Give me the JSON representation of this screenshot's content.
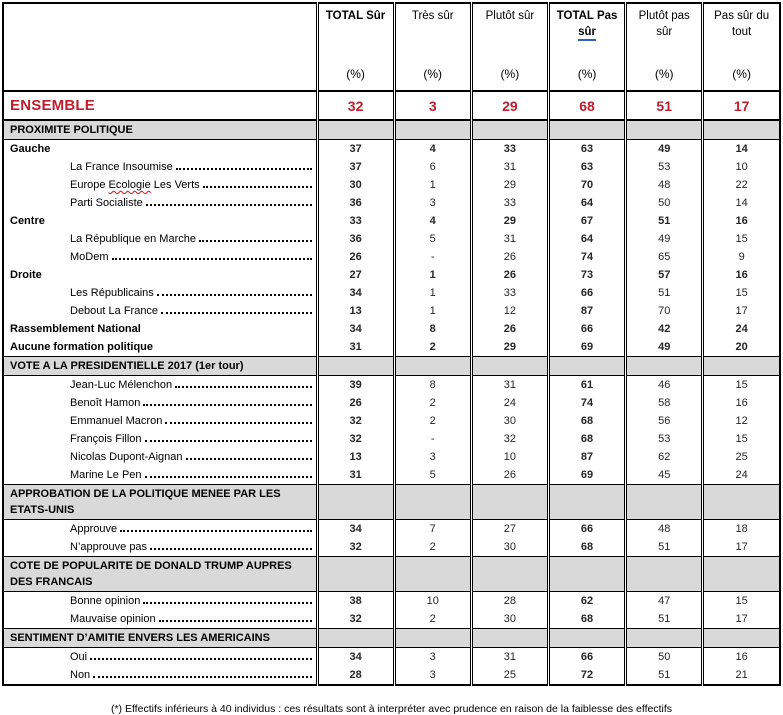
{
  "table": {
    "columns": [
      {
        "title": "TOTAL Sûr",
        "unit": "(%)"
      },
      {
        "title": "Très sûr",
        "unit": "(%)"
      },
      {
        "title": "Plutôt sûr",
        "unit": "(%)"
      },
      {
        "title_line1": "TOTAL Pas",
        "title_line2": "sûr",
        "unit": "(%)"
      },
      {
        "title": "Plutôt pas sûr",
        "unit": "(%)"
      },
      {
        "title": "Pas sûr du tout",
        "unit": "(%)"
      }
    ],
    "rows": [
      {
        "type": "ensemble",
        "label": "ENSEMBLE",
        "values": [
          "32",
          "3",
          "29",
          "68",
          "51",
          "17"
        ]
      },
      {
        "type": "section",
        "label": "PROXIMITE POLITIQUE"
      },
      {
        "type": "group",
        "label": "Gauche",
        "values": [
          "37",
          "4",
          "33",
          "63",
          "49",
          "14"
        ]
      },
      {
        "type": "item",
        "label": "La France Insoumise",
        "values": [
          "37",
          "6",
          "31",
          "63",
          "53",
          "10"
        ]
      },
      {
        "type": "item",
        "label": "Europe Ecologie Les Verts",
        "spellcheck_word": "Ecologie",
        "values": [
          "30",
          "1",
          "29",
          "70",
          "48",
          "22"
        ]
      },
      {
        "type": "item",
        "label": "Parti Socialiste",
        "values": [
          "36",
          "3",
          "33",
          "64",
          "50",
          "14"
        ]
      },
      {
        "type": "group",
        "label": "Centre",
        "values": [
          "33",
          "4",
          "29",
          "67",
          "51",
          "16"
        ]
      },
      {
        "type": "item",
        "label": "La République en Marche",
        "values": [
          "36",
          "5",
          "31",
          "64",
          "49",
          "15"
        ]
      },
      {
        "type": "item",
        "label": "MoDem",
        "values": [
          "26",
          "-",
          "26",
          "74",
          "65",
          "9"
        ]
      },
      {
        "type": "group",
        "label": "Droite",
        "values": [
          "27",
          "1",
          "26",
          "73",
          "57",
          "16"
        ]
      },
      {
        "type": "item",
        "label": "Les Républicains",
        "values": [
          "34",
          "1",
          "33",
          "66",
          "51",
          "15"
        ]
      },
      {
        "type": "item",
        "label": "Debout La France",
        "values": [
          "13",
          "1",
          "12",
          "87",
          "70",
          "17"
        ]
      },
      {
        "type": "group",
        "label": "Rassemblement National",
        "values": [
          "34",
          "8",
          "26",
          "66",
          "42",
          "24"
        ]
      },
      {
        "type": "group",
        "label": "Aucune formation politique",
        "values": [
          "31",
          "2",
          "29",
          "69",
          "49",
          "20"
        ]
      },
      {
        "type": "section",
        "label": "VOTE A LA PRESIDENTIELLE 2017 (1er tour)"
      },
      {
        "type": "item",
        "label": "Jean-Luc Mélenchon",
        "values": [
          "39",
          "8",
          "31",
          "61",
          "46",
          "15"
        ]
      },
      {
        "type": "item",
        "label": "Benoît Hamon",
        "values": [
          "26",
          "2",
          "24",
          "74",
          "58",
          "16"
        ]
      },
      {
        "type": "item",
        "label": "Emmanuel Macron",
        "values": [
          "32",
          "2",
          "30",
          "68",
          "56",
          "12"
        ]
      },
      {
        "type": "item",
        "label": "François Fillon",
        "values": [
          "32",
          "-",
          "32",
          "68",
          "53",
          "15"
        ]
      },
      {
        "type": "item",
        "label": "Nicolas Dupont-Aignan",
        "values": [
          "13",
          "3",
          "10",
          "87",
          "62",
          "25"
        ]
      },
      {
        "type": "item",
        "label": "Marine Le Pen",
        "values": [
          "31",
          "5",
          "26",
          "69",
          "45",
          "24"
        ]
      },
      {
        "type": "section",
        "label": "APPROBATION DE LA POLITIQUE MENEE PAR LES ETATS-UNIS"
      },
      {
        "type": "item",
        "label": "Approuve",
        "values": [
          "34",
          "7",
          "27",
          "66",
          "48",
          "18"
        ]
      },
      {
        "type": "item",
        "label": "N’approuve pas",
        "values": [
          "32",
          "2",
          "30",
          "68",
          "51",
          "17"
        ]
      },
      {
        "type": "section",
        "label": "COTE DE POPULARITE DE DONALD TRUMP AUPRES DES FRANCAIS"
      },
      {
        "type": "item",
        "label": "Bonne opinion",
        "values": [
          "38",
          "10",
          "28",
          "62",
          "47",
          "15"
        ]
      },
      {
        "type": "item",
        "label": "Mauvaise opinion",
        "values": [
          "32",
          "2",
          "30",
          "68",
          "51",
          "17"
        ]
      },
      {
        "type": "section",
        "label": "SENTIMENT D’AMITIE ENVERS LES AMERICAINS"
      },
      {
        "type": "item",
        "label": "Oui",
        "values": [
          "34",
          "3",
          "31",
          "66",
          "50",
          "16"
        ]
      },
      {
        "type": "item",
        "label": "Non",
        "values": [
          "28",
          "3",
          "25",
          "72",
          "51",
          "21"
        ]
      }
    ]
  },
  "footnote": "(*) Effectifs inférieurs à 40 individus : ces résultats sont à interpréter avec prudence en raison de la faiblesse des effectifs",
  "colors": {
    "accent_red": "#BE1E2D",
    "section_bg": "#D9D9D9",
    "underline_blue": "#2F5FC4",
    "spellcheck_red": "#FF0000"
  }
}
